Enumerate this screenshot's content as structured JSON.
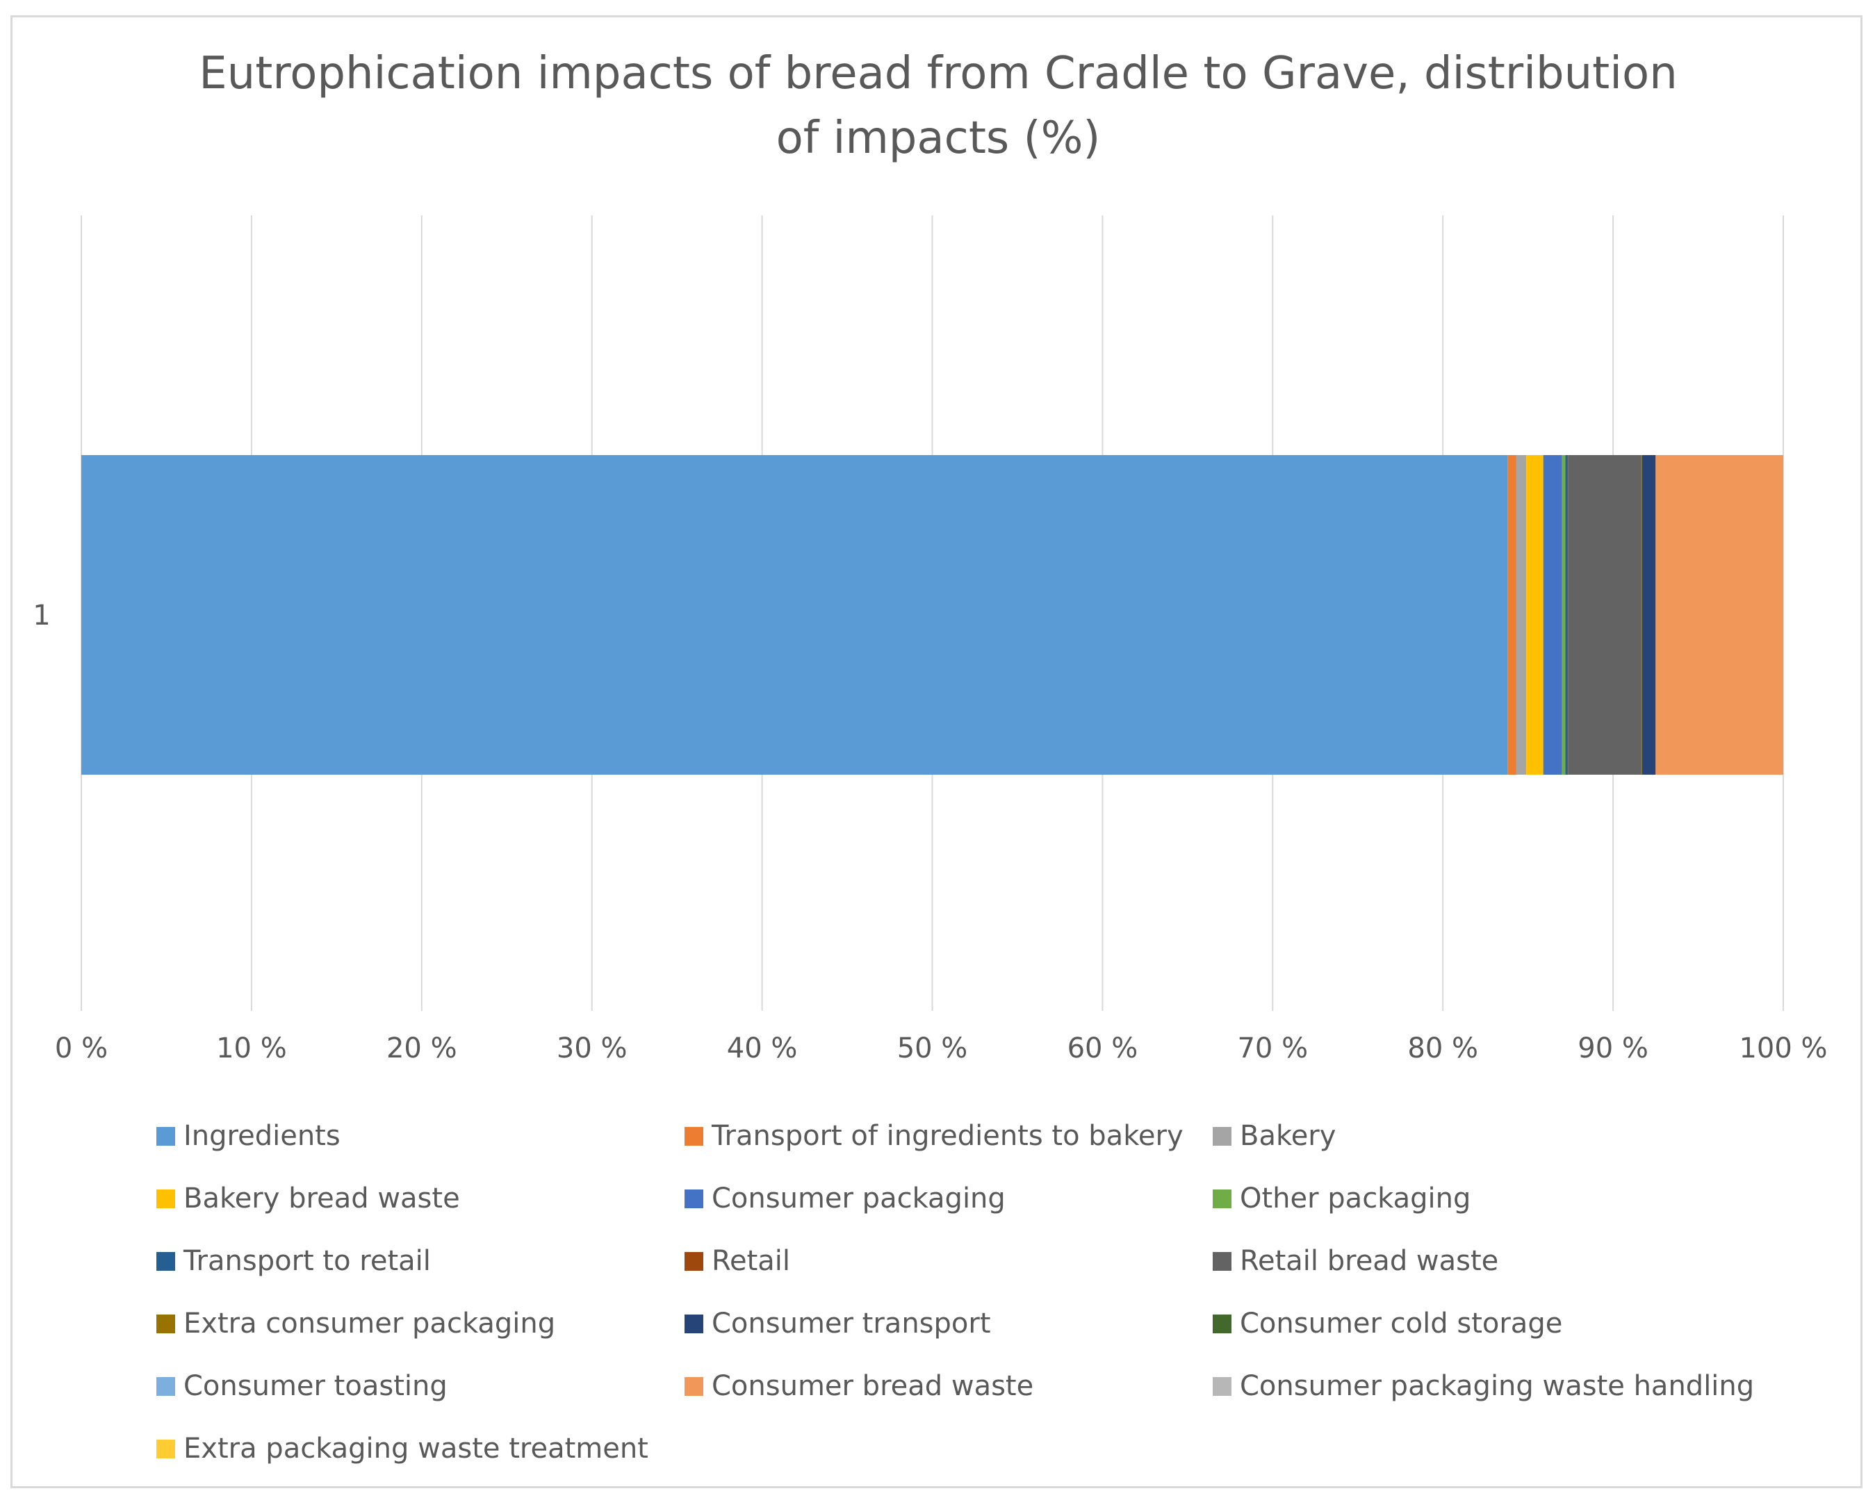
{
  "chart_data": {
    "type": "bar",
    "orientation": "horizontal",
    "stacked": "percent",
    "title": "Eutrophication impacts of bread from Cradle to Grave, distribution of impacts (%)",
    "categories": [
      "1"
    ],
    "xlabel": "",
    "ylabel": "",
    "xlim": [
      0,
      100
    ],
    "x_ticks": [
      "0 %",
      "10 %",
      "20 %",
      "30 %",
      "40 %",
      "50 %",
      "60 %",
      "70 %",
      "80 %",
      "90 %",
      "100 %"
    ],
    "grid": true,
    "legend_position": "bottom",
    "series": [
      {
        "name": "Ingredients",
        "values": [
          83.8
        ],
        "color": "#5B9BD5"
      },
      {
        "name": "Transport of ingredients to bakery",
        "values": [
          0.5
        ],
        "color": "#ED7D31"
      },
      {
        "name": "Bakery",
        "values": [
          0.6
        ],
        "color": "#A5A5A5"
      },
      {
        "name": "Bakery bread waste",
        "values": [
          1.0
        ],
        "color": "#FFC000"
      },
      {
        "name": "Consumer packaging",
        "values": [
          1.1
        ],
        "color": "#4472C4"
      },
      {
        "name": "Other packaging",
        "values": [
          0.2
        ],
        "color": "#70AD47"
      },
      {
        "name": "Transport to retail",
        "values": [
          0.1
        ],
        "color": "#255E91"
      },
      {
        "name": "Retail",
        "values": [
          0.05
        ],
        "color": "#9E480E"
      },
      {
        "name": "Retail bread waste",
        "values": [
          4.3
        ],
        "color": "#636363"
      },
      {
        "name": "Extra consumer packaging",
        "values": [
          0.05
        ],
        "color": "#997300"
      },
      {
        "name": "Consumer transport",
        "values": [
          0.8
        ],
        "color": "#264478"
      },
      {
        "name": "Consumer cold storage",
        "values": [
          0.0
        ],
        "color": "#43682B"
      },
      {
        "name": "Consumer toasting",
        "values": [
          0.0
        ],
        "color": "#7CAFDD"
      },
      {
        "name": "Consumer bread waste",
        "values": [
          7.5
        ],
        "color": "#F1975A"
      },
      {
        "name": "Consumer packaging waste handling",
        "values": [
          0.0
        ],
        "color": "#B7B7B7"
      },
      {
        "name": "Extra packaging waste treatment",
        "values": [
          0.0
        ],
        "color": "#FFCD33"
      }
    ]
  },
  "colors": {
    "gridline": "#d9d9d9",
    "text": "#595959",
    "frame": "#d9d9d9"
  }
}
